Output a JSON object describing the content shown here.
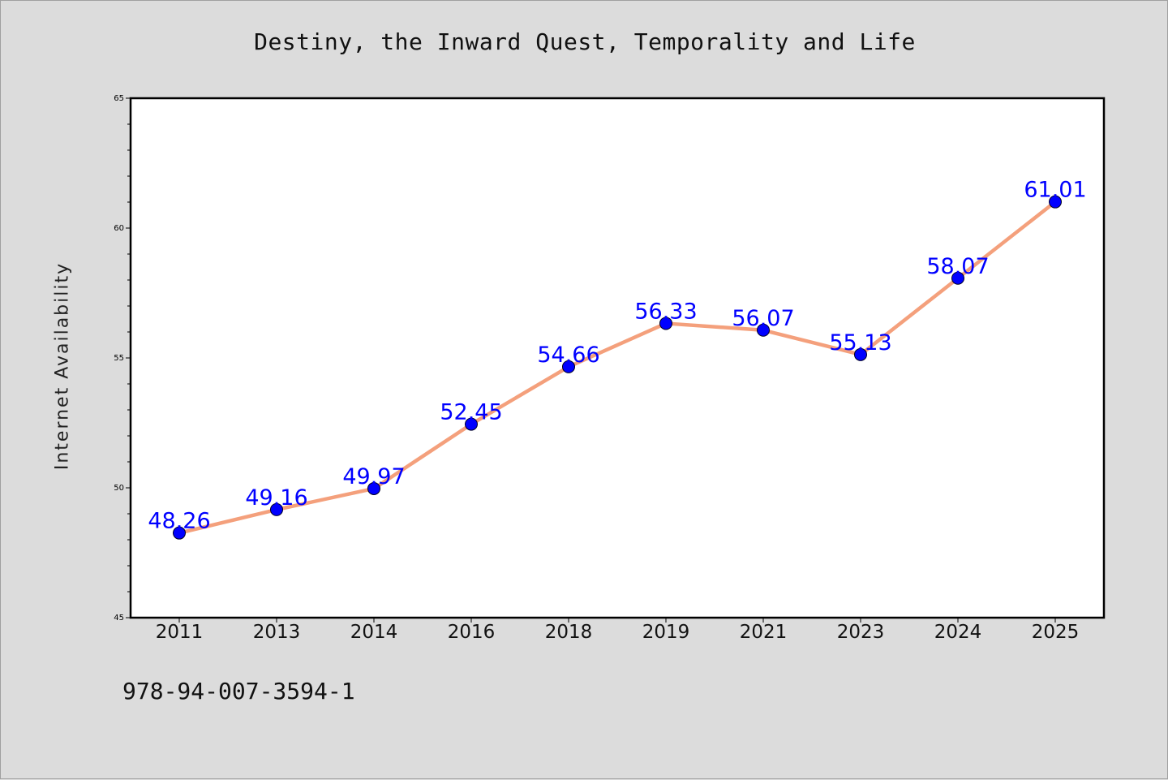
{
  "chart_data": {
    "type": "line",
    "title": "Destiny, the Inward Quest, Temporality and Life",
    "xlabel": "",
    "ylabel": "Internet Availability",
    "categories": [
      "2011",
      "2013",
      "2014",
      "2016",
      "2018",
      "2019",
      "2021",
      "2023",
      "2024",
      "2025"
    ],
    "series": [
      {
        "values": [
          48.26,
          49.16,
          49.97,
          52.45,
          54.66,
          56.33,
          56.07,
          55.13,
          58.07,
          61.01
        ],
        "data_labels": [
          "48.26",
          "49.16",
          "49.97",
          "52.45",
          "54.66",
          "56.33",
          "56.07",
          "55.13",
          "58.07",
          "61.01"
        ]
      }
    ],
    "ylim": [
      45,
      65
    ],
    "yticks": [
      "45",
      "50",
      "55",
      "60",
      "65"
    ],
    "grid": false,
    "line_color": "#f4a07c",
    "marker_color": "#0000ff",
    "label_color": "#0000ff"
  },
  "footer": {
    "code": "978-94-007-3594-1"
  }
}
